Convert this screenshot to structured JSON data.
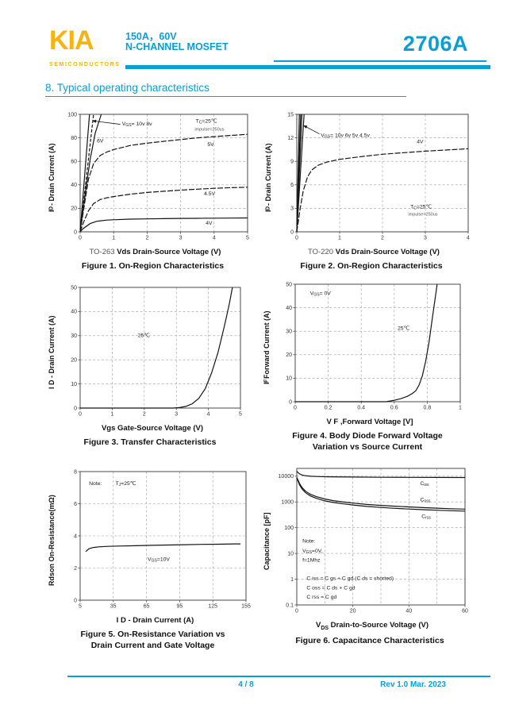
{
  "header": {
    "logo": "KIA",
    "logo_sub": "SEMICONDUCTORS",
    "subtitle_line1": "150A，60V",
    "subtitle_line2": "N-CHANNEL MOSFET",
    "part_number": "2706A"
  },
  "section_title": "8. Typical operating characteristics",
  "footer": {
    "page": "4 / 8",
    "rev": "Rev 1.0 Mar. 2023"
  },
  "colors": {
    "accent": "#0a9ed4",
    "logo_yellow": "#f6b40e",
    "curve": "#141414",
    "grid": "#9c9c9c"
  },
  "chart_data": [
    {
      "id": "figure-1",
      "type": "line",
      "xlabel_prefix": "TO-263",
      "xlabel": "Vds Drain-Source Voltage (V)",
      "ylabel": "I_{D} - Drain Current (A)",
      "caption": [
        "Figure 1. On-Region Characteristics"
      ],
      "xlim": [
        0,
        5
      ],
      "ylim": [
        0,
        100
      ],
      "xticks": [
        0,
        1,
        2,
        3,
        4,
        5
      ],
      "yticks": [
        0,
        20,
        40,
        60,
        80,
        100
      ],
      "yscale": "linear",
      "grid": true,
      "series": [
        {
          "name": "VGS-10V",
          "points": [
            [
              0,
              0
            ],
            [
              0.28,
              100
            ]
          ]
        },
        {
          "name": "VGS-8V",
          "dash": "4,2",
          "points": [
            [
              0,
              0
            ],
            [
              0.4,
              100
            ]
          ]
        },
        {
          "name": "VGS-6V",
          "points": [
            [
              0,
              0
            ],
            [
              0.15,
              32
            ],
            [
              0.3,
              62
            ],
            [
              0.45,
              84
            ],
            [
              0.63,
              100
            ]
          ]
        },
        {
          "name": "VGS-5V",
          "dash": "7,2",
          "points": [
            [
              0,
              0
            ],
            [
              0.1,
              18
            ],
            [
              0.25,
              45
            ],
            [
              0.4,
              58
            ],
            [
              0.6,
              65
            ],
            [
              0.8,
              68
            ],
            [
              1,
              70
            ],
            [
              1.5,
              73.5
            ],
            [
              2,
              75.5
            ],
            [
              2.5,
              77
            ],
            [
              3,
              78.5
            ],
            [
              3.5,
              80
            ],
            [
              4,
              81
            ],
            [
              4.5,
              82
            ],
            [
              5,
              83
            ]
          ]
        },
        {
          "name": "VGS-4.5V",
          "dash": "7,2",
          "points": [
            [
              0,
              0
            ],
            [
              0.1,
              8
            ],
            [
              0.25,
              18
            ],
            [
              0.4,
              24
            ],
            [
              0.6,
              27.5
            ],
            [
              0.8,
              29
            ],
            [
              1,
              30
            ],
            [
              1.5,
              32
            ],
            [
              2,
              33.5
            ],
            [
              2.5,
              34.5
            ],
            [
              3,
              35.5
            ],
            [
              3.5,
              36.3
            ],
            [
              4,
              37
            ],
            [
              4.5,
              37.6
            ],
            [
              5,
              38
            ]
          ]
        },
        {
          "name": "VGS-4V",
          "points": [
            [
              0,
              0
            ],
            [
              0.1,
              3
            ],
            [
              0.3,
              7
            ],
            [
              0.5,
              9
            ],
            [
              0.8,
              10
            ],
            [
              1,
              10.3
            ],
            [
              1.5,
              10.8
            ],
            [
              2,
              11
            ],
            [
              2.5,
              11.2
            ],
            [
              3,
              11.4
            ],
            [
              3.5,
              11.5
            ],
            [
              4,
              11.6
            ],
            [
              4.5,
              11.7
            ],
            [
              5,
              11.8
            ]
          ]
        }
      ],
      "annotations": [
        {
          "text": "V_{GS}= 10v 8v",
          "x": 1.25,
          "y": 90.5,
          "arrow": {
            "from": [
              1.2,
              91.5
            ],
            "to": [
              0.36,
              94.5
            ]
          }
        },
        {
          "text": "6V",
          "x": 0.5,
          "y": 76
        },
        {
          "text": "T_{C}=25℃",
          "x": 3.45,
          "y": 93
        },
        {
          "text": "impulse=250us",
          "x": 3.42,
          "y": 86,
          "size": 5.5,
          "color": "#555555"
        },
        {
          "text": "5V",
          "x": 3.8,
          "y": 73
        },
        {
          "text": "4.5V",
          "x": 3.7,
          "y": 31
        },
        {
          "text": "4V",
          "x": 3.75,
          "y": 6
        }
      ]
    },
    {
      "id": "figure-2",
      "type": "line",
      "xlabel_prefix": "TO-220",
      "xlabel": "Vds Drain-Source Voltage (V)",
      "ylabel": "I_{D} - Drain Current (A)",
      "caption": [
        "Figure 2. On-Region Characteristics"
      ],
      "xlim": [
        0,
        4
      ],
      "ylim": [
        0,
        15
      ],
      "xticks": [
        0,
        1,
        2,
        3,
        4
      ],
      "yticks": [
        0,
        3,
        6,
        9,
        12,
        15
      ],
      "yscale": "linear",
      "grid": true,
      "series": [
        {
          "name": "VGS-10V",
          "points": [
            [
              0,
              0
            ],
            [
              0.06,
              15
            ]
          ]
        },
        {
          "name": "VGS-6V",
          "points": [
            [
              0,
              0
            ],
            [
              0.09,
              15
            ]
          ]
        },
        {
          "name": "VGS-5V",
          "points": [
            [
              0,
              0
            ],
            [
              0.12,
              15
            ]
          ]
        },
        {
          "name": "VGS-4.5V",
          "points": [
            [
              0,
              0
            ],
            [
              0.17,
              15
            ]
          ]
        },
        {
          "name": "VGS-4V",
          "dash": "7,2",
          "points": [
            [
              0,
              0
            ],
            [
              0.04,
              1.5
            ],
            [
              0.08,
              3
            ],
            [
              0.15,
              5.2
            ],
            [
              0.25,
              7
            ],
            [
              0.35,
              7.9
            ],
            [
              0.5,
              8.5
            ],
            [
              0.7,
              8.9
            ],
            [
              1,
              9.25
            ],
            [
              1.5,
              9.6
            ],
            [
              2,
              9.9
            ],
            [
              2.5,
              10.1
            ],
            [
              3,
              10.3
            ],
            [
              3.5,
              10.45
            ],
            [
              4,
              10.6
            ]
          ]
        }
      ],
      "annotations": [
        {
          "text": "V_{GS}= 10v 6v 5v 4.5v",
          "x": 0.56,
          "y": 12.1,
          "arrow": {
            "from": [
              0.53,
              12.5
            ],
            "to": [
              0.15,
              13.6
            ]
          }
        },
        {
          "text": "4V",
          "x": 2.8,
          "y": 11.3
        },
        {
          "text": "T_{C}=25℃",
          "x": 2.65,
          "y": 3.0
        },
        {
          "text": "impulse=250us",
          "x": 2.6,
          "y": 2.1,
          "size": 5.5,
          "color": "#555555"
        }
      ]
    },
    {
      "id": "figure-3",
      "type": "line",
      "xlabel_prefix": "",
      "xlabel": "Vgs Gate-Source Voltage (V)",
      "ylabel": "I D - Drain Current (A)",
      "caption": [
        "Figure 3. Transfer Characteristics"
      ],
      "xlim": [
        0,
        5
      ],
      "ylim": [
        0,
        50
      ],
      "xticks": [
        0,
        1,
        2,
        3,
        4,
        5
      ],
      "yticks": [
        0,
        10,
        20,
        30,
        40,
        50
      ],
      "yscale": "linear",
      "grid": true,
      "series": [
        {
          "name": "transfer-25C",
          "points": [
            [
              0,
              0
            ],
            [
              2.9,
              0
            ],
            [
              3.1,
              0.2
            ],
            [
              3.3,
              0.7
            ],
            [
              3.5,
              1.8
            ],
            [
              3.7,
              4
            ],
            [
              3.9,
              8
            ],
            [
              4.1,
              14.5
            ],
            [
              4.3,
              23
            ],
            [
              4.5,
              34
            ],
            [
              4.65,
              43
            ],
            [
              4.75,
              50
            ]
          ]
        }
      ],
      "annotations": [
        {
          "text": "25℃",
          "x": 1.8,
          "y": 29.5
        }
      ]
    },
    {
      "id": "figure-4",
      "type": "line",
      "xlabel_prefix": "",
      "xlabel": "V F ,Forward Voltage [V]",
      "ylabel": "I_{F} Forward Current (A)",
      "caption": [
        "Figure 4. Body Diode Forward Voltage",
        "Variation vs Source Current"
      ],
      "xlim": [
        0,
        1
      ],
      "ylim": [
        0,
        50
      ],
      "xticks": [
        0,
        0.2,
        0.4,
        0.6,
        0.8,
        1
      ],
      "yticks": [
        0,
        10,
        20,
        30,
        40,
        50
      ],
      "yscale": "linear",
      "grid": true,
      "series": [
        {
          "name": "body-diode-25C",
          "points": [
            [
              0,
              0
            ],
            [
              0.55,
              0
            ],
            [
              0.6,
              0.6
            ],
            [
              0.64,
              1.3
            ],
            [
              0.68,
              2.3
            ],
            [
              0.71,
              3.5
            ],
            [
              0.73,
              4.6
            ],
            [
              0.75,
              7
            ],
            [
              0.77,
              11
            ],
            [
              0.79,
              17
            ],
            [
              0.81,
              25
            ],
            [
              0.83,
              35
            ],
            [
              0.85,
              45
            ],
            [
              0.86,
              50
            ]
          ]
        }
      ],
      "annotations": [
        {
          "text": "V_{GS}= 0V",
          "x": 0.09,
          "y": 45.5
        },
        {
          "text": "25℃",
          "x": 0.62,
          "y": 30.5
        }
      ]
    },
    {
      "id": "figure-5",
      "type": "line",
      "xlabel_prefix": "",
      "xlabel": "I D - Drain Current (A)",
      "ylabel": "Rdson On-Resistance(mΩ)",
      "caption": [
        "Figure 5. On-Resistance Variation  vs",
        "Drain Current and Gate Voltage"
      ],
      "xlim": [
        5,
        155
      ],
      "ylim": [
        0,
        8
      ],
      "xticks": [
        5,
        35,
        65,
        95,
        125,
        155
      ],
      "yticks": [
        0,
        2,
        4,
        6,
        8
      ],
      "yscale": "linear",
      "grid": true,
      "series": [
        {
          "name": "rdson-vgs10",
          "points": [
            [
              10,
              3.02
            ],
            [
              13,
              3.2
            ],
            [
              17,
              3.28
            ],
            [
              22,
              3.32
            ],
            [
              30,
              3.35
            ],
            [
              40,
              3.37
            ],
            [
              55,
              3.39
            ],
            [
              70,
              3.41
            ],
            [
              85,
              3.43
            ],
            [
              100,
              3.45
            ],
            [
              115,
              3.47
            ],
            [
              130,
              3.48
            ],
            [
              145,
              3.5
            ],
            [
              150,
              3.5
            ]
          ]
        }
      ],
      "annotations": [
        {
          "text": "Note:",
          "x": 13,
          "y": 7.15
        },
        {
          "text": "T_{J}=25℃",
          "x": 37,
          "y": 7.15
        },
        {
          "text": "V_{GS}=10V",
          "x": 66,
          "y": 2.45
        }
      ]
    },
    {
      "id": "figure-6",
      "type": "line",
      "xlabel_prefix": "",
      "xlabel": "V_{DS}  Drain-to-Source Voltage (V)",
      "ylabel": "Capacitance [pF]",
      "caption": [
        "Figure 6. Capacitance Characteristics"
      ],
      "xlim": [
        0,
        60
      ],
      "ylim": [
        0.1,
        20000
      ],
      "xticks": [
        0,
        20,
        40,
        60
      ],
      "xgrid_extra": [
        10,
        30,
        50
      ],
      "yticks": [
        0.1,
        1,
        10,
        100,
        1000,
        10000
      ],
      "yscale": "log",
      "grid": true,
      "series": [
        {
          "name": "Ciss",
          "points": [
            [
              0,
              15500
            ],
            [
              0.5,
              13500
            ],
            [
              1,
              12200
            ],
            [
              2,
              11000
            ],
            [
              3,
              10400
            ],
            [
              5,
              9900
            ],
            [
              8,
              9600
            ],
            [
              12,
              9400
            ],
            [
              20,
              9200
            ],
            [
              30,
              9050
            ],
            [
              40,
              8950
            ],
            [
              50,
              8900
            ],
            [
              60,
              8850
            ]
          ]
        },
        {
          "name": "Coss",
          "points": [
            [
              0,
              9000
            ],
            [
              0.5,
              6800
            ],
            [
              1,
              5200
            ],
            [
              1.5,
              4200
            ],
            [
              2,
              3500
            ],
            [
              3,
              2700
            ],
            [
              4,
              2250
            ],
            [
              5,
              1950
            ],
            [
              7,
              1600
            ],
            [
              10,
              1300
            ],
            [
              13,
              1120
            ],
            [
              17,
              980
            ],
            [
              20,
              900
            ],
            [
              25,
              800
            ],
            [
              30,
              730
            ],
            [
              35,
              680
            ],
            [
              40,
              640
            ],
            [
              45,
              600
            ],
            [
              50,
              570
            ],
            [
              55,
              545
            ],
            [
              60,
              525
            ]
          ]
        },
        {
          "name": "Crss",
          "points": [
            [
              0,
              8600
            ],
            [
              0.5,
              6200
            ],
            [
              1,
              4600
            ],
            [
              1.5,
              3700
            ],
            [
              2,
              3050
            ],
            [
              3,
              2350
            ],
            [
              4,
              1950
            ],
            [
              5,
              1680
            ],
            [
              7,
              1380
            ],
            [
              10,
              1100
            ],
            [
              13,
              950
            ],
            [
              17,
              830
            ],
            [
              20,
              760
            ],
            [
              25,
              670
            ],
            [
              30,
              610
            ],
            [
              35,
              565
            ],
            [
              40,
              530
            ],
            [
              45,
              500
            ],
            [
              50,
              475
            ],
            [
              55,
              455
            ],
            [
              60,
              440
            ]
          ]
        }
      ],
      "annotations": [
        {
          "text": "C_{iss}",
          "x": 44,
          "y": 4500
        },
        {
          "text": "C_{oss}",
          "x": 44,
          "y": 1050
        },
        {
          "text": "C_{rss}",
          "x": 44.5,
          "y": 240
        },
        {
          "text": "Note:",
          "x": 2,
          "y": 26
        },
        {
          "text": "V_{GS}=0V,",
          "x": 2,
          "y": 11
        },
        {
          "text": "f=1Mhz",
          "x": 2,
          "y": 4.8
        },
        {
          "text": "C iss = C gs + C gd (C ds = shorted)",
          "x": 3.5,
          "y": 0.92
        },
        {
          "text": "C oss = C ds + C gd",
          "x": 3.5,
          "y": 0.4
        },
        {
          "text": "C rss = C gd",
          "x": 3.5,
          "y": 0.175
        }
      ]
    }
  ]
}
